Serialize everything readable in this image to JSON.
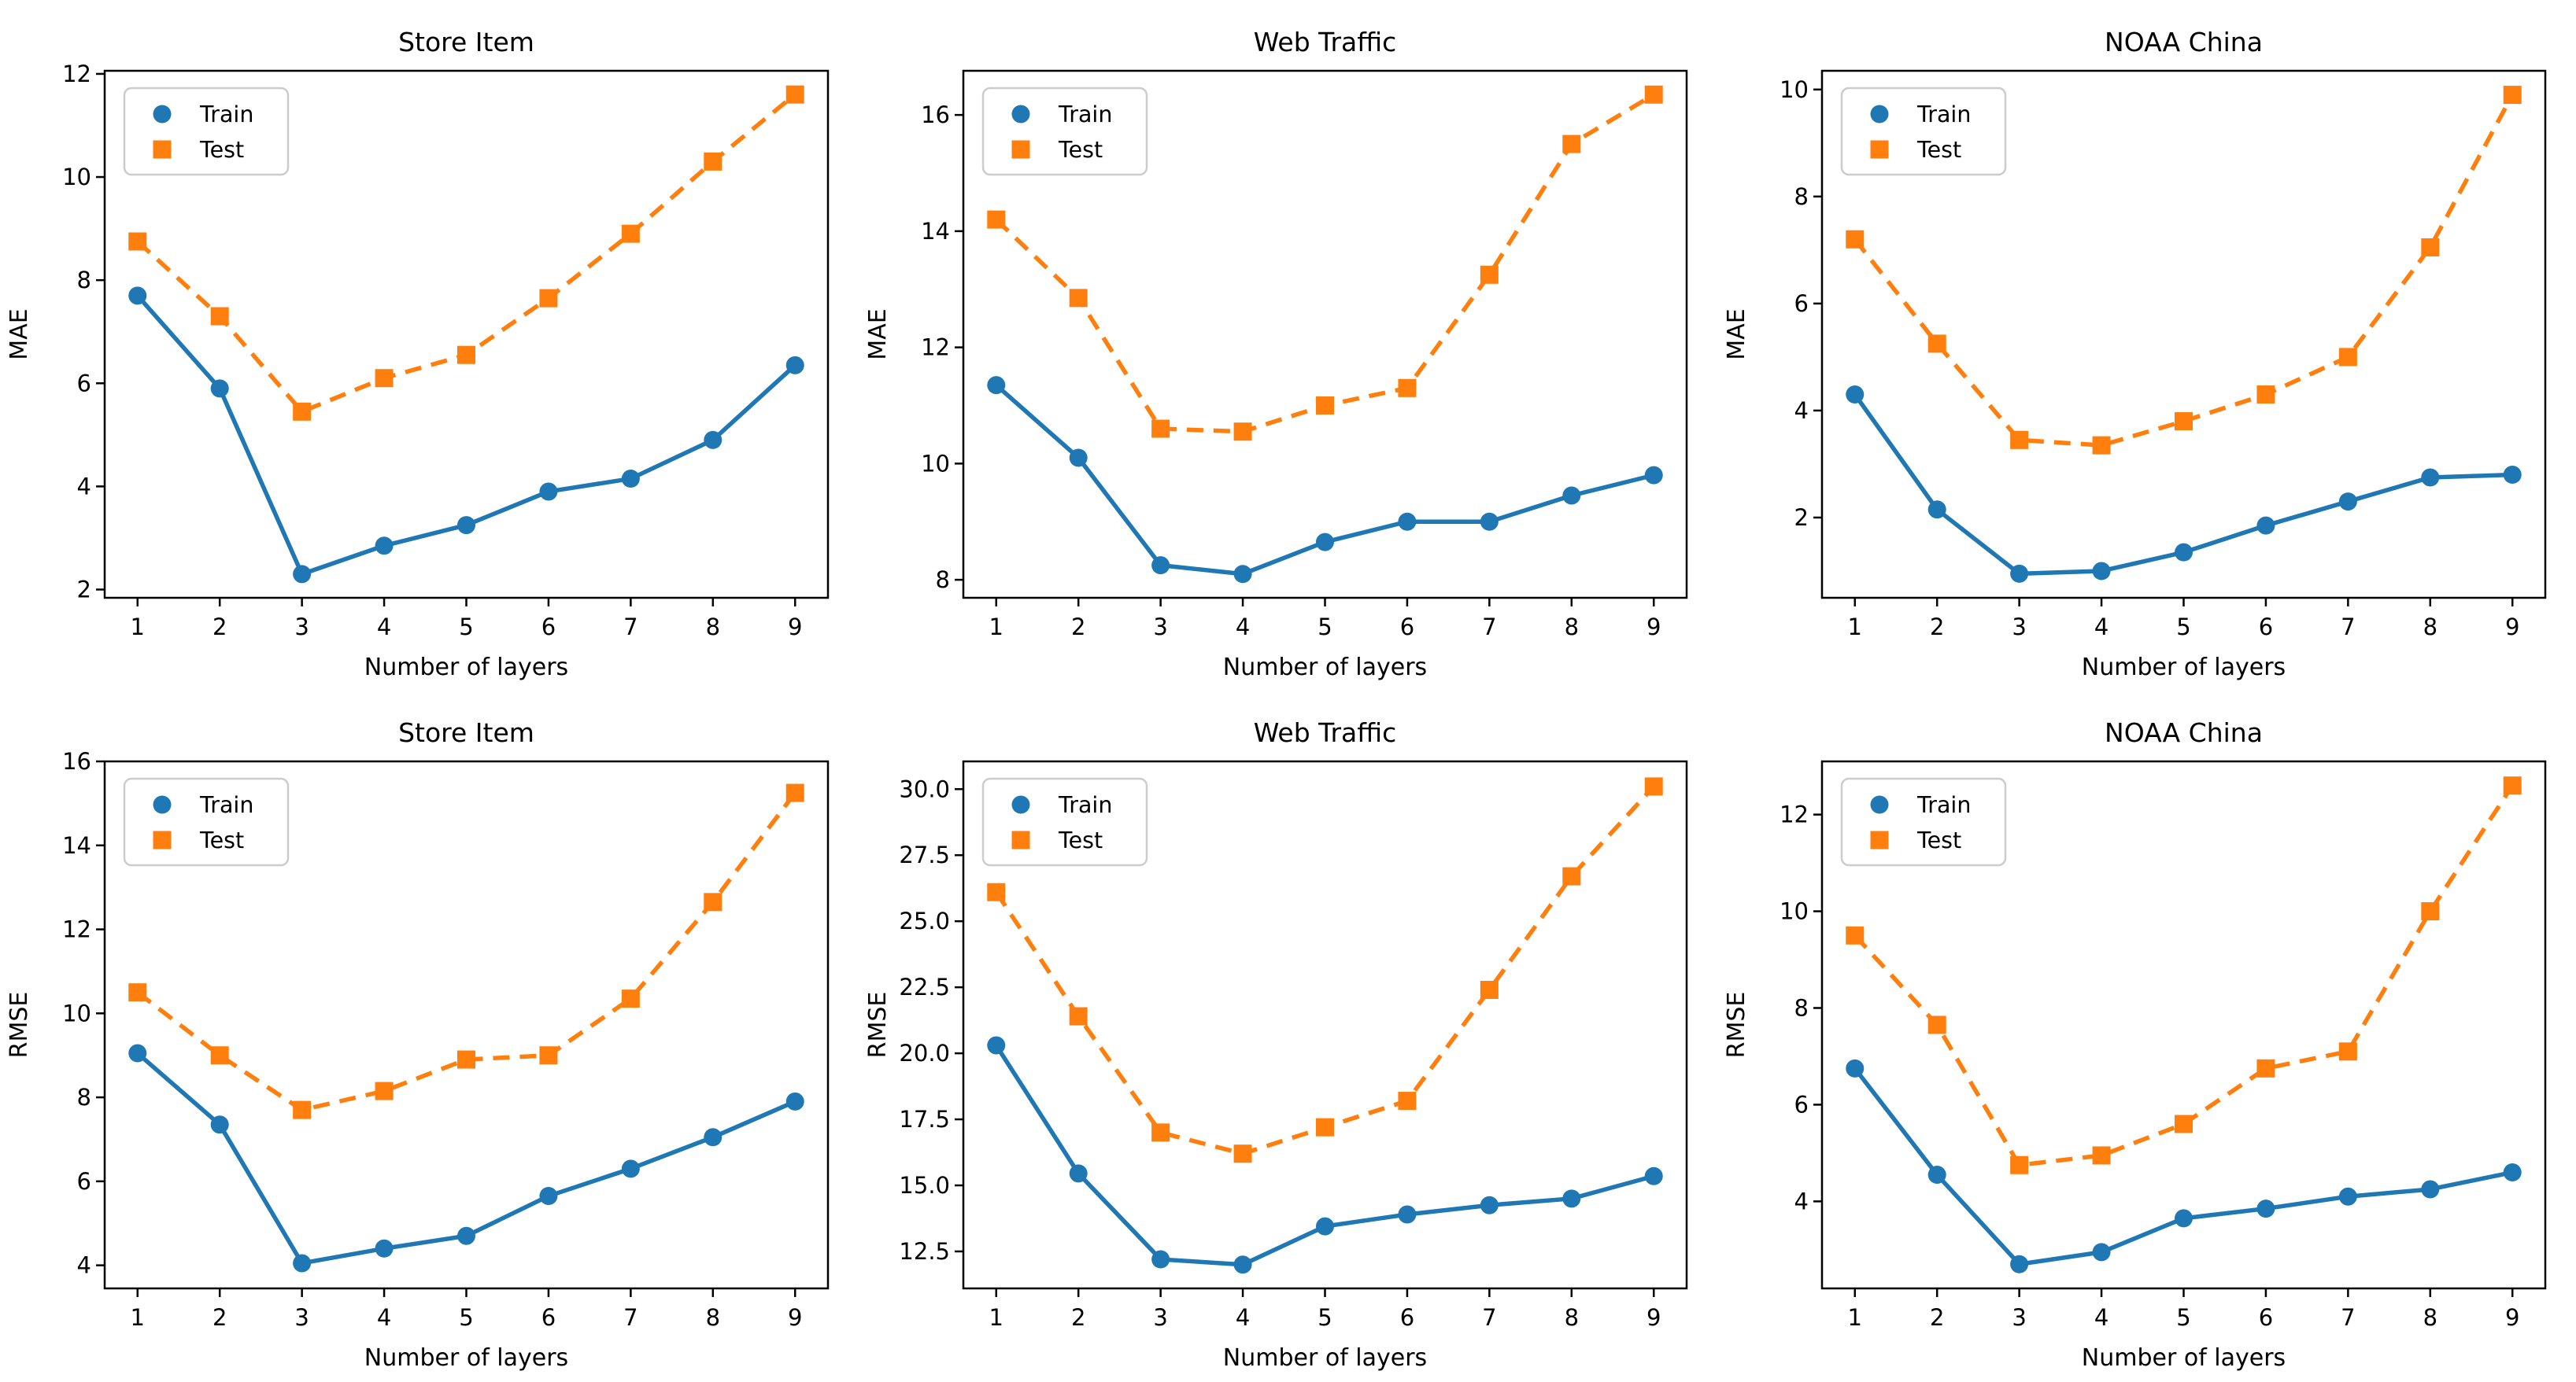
{
  "figure": {
    "background": "#ffffff",
    "axis_color": "#000000",
    "legend_border_color": "#cccccc",
    "train_color": "#1f77b4",
    "test_color": "#ff7f0e",
    "legend_items": [
      "Train",
      "Test"
    ],
    "x_axis_label": "Number of layers"
  },
  "chart_data": [
    {
      "type": "line",
      "title": "Store Item",
      "xlabel": "Number of layers",
      "ylabel": "MAE",
      "x": [
        1,
        2,
        3,
        4,
        5,
        6,
        7,
        8,
        9
      ],
      "xtick_labels": [
        "1",
        "2",
        "3",
        "4",
        "5",
        "6",
        "7",
        "8",
        "9"
      ],
      "xlim": [
        0.6,
        9.4
      ],
      "ylim": [
        1.84,
        12.06
      ],
      "yticks": [
        2,
        4,
        6,
        8,
        10,
        12
      ],
      "ytick_labels": [
        "2",
        "4",
        "6",
        "8",
        "10",
        "12"
      ],
      "grid": false,
      "legend_position": "upper left",
      "series": [
        {
          "name": "Train",
          "color": "#1f77b4",
          "marker": "circle",
          "linestyle": "solid",
          "values": [
            7.7,
            5.9,
            2.3,
            2.85,
            3.25,
            3.9,
            4.15,
            4.9,
            6.35
          ]
        },
        {
          "name": "Test",
          "color": "#ff7f0e",
          "marker": "square",
          "linestyle": "dashed",
          "values": [
            8.75,
            7.3,
            5.45,
            6.1,
            6.55,
            7.65,
            8.9,
            10.3,
            11.6
          ]
        }
      ]
    },
    {
      "type": "line",
      "title": "Web Traffic",
      "xlabel": "Number of layers",
      "ylabel": "MAE",
      "x": [
        1,
        2,
        3,
        4,
        5,
        6,
        7,
        8,
        9
      ],
      "xtick_labels": [
        "1",
        "2",
        "3",
        "4",
        "5",
        "6",
        "7",
        "8",
        "9"
      ],
      "xlim": [
        0.6,
        9.4
      ],
      "ylim": [
        7.69,
        16.76
      ],
      "yticks": [
        8,
        10,
        12,
        14,
        16
      ],
      "ytick_labels": [
        "8",
        "10",
        "12",
        "14",
        "16"
      ],
      "grid": false,
      "legend_position": "upper left",
      "series": [
        {
          "name": "Train",
          "color": "#1f77b4",
          "marker": "circle",
          "linestyle": "solid",
          "values": [
            11.35,
            10.1,
            8.25,
            8.1,
            8.65,
            9.0,
            9.0,
            9.45,
            9.8
          ]
        },
        {
          "name": "Test",
          "color": "#ff7f0e",
          "marker": "square",
          "linestyle": "dashed",
          "values": [
            14.2,
            12.85,
            10.6,
            10.55,
            11.0,
            11.3,
            13.25,
            15.5,
            16.35
          ]
        }
      ]
    },
    {
      "type": "line",
      "title": "NOAA China",
      "xlabel": "Number of layers",
      "ylabel": "MAE",
      "x": [
        1,
        2,
        3,
        4,
        5,
        6,
        7,
        8,
        9
      ],
      "xtick_labels": [
        "1",
        "2",
        "3",
        "4",
        "5",
        "6",
        "7",
        "8",
        "9"
      ],
      "xlim": [
        0.6,
        9.4
      ],
      "ylim": [
        0.5,
        10.35
      ],
      "yticks": [
        2,
        4,
        6,
        8,
        10
      ],
      "ytick_labels": [
        "2",
        "4",
        "6",
        "8",
        "10"
      ],
      "grid": false,
      "legend_position": "upper left",
      "series": [
        {
          "name": "Train",
          "color": "#1f77b4",
          "marker": "circle",
          "linestyle": "solid",
          "values": [
            4.3,
            2.15,
            0.95,
            1.0,
            1.35,
            1.85,
            2.3,
            2.75,
            2.8
          ]
        },
        {
          "name": "Test",
          "color": "#ff7f0e",
          "marker": "square",
          "linestyle": "dashed",
          "values": [
            7.2,
            5.25,
            3.45,
            3.35,
            3.8,
            4.3,
            5.0,
            7.05,
            9.9
          ]
        }
      ]
    },
    {
      "type": "line",
      "title": "Store Item",
      "xlabel": "Number of layers",
      "ylabel": "RMSE",
      "x": [
        1,
        2,
        3,
        4,
        5,
        6,
        7,
        8,
        9
      ],
      "xtick_labels": [
        "1",
        "2",
        "3",
        "4",
        "5",
        "6",
        "7",
        "8",
        "9"
      ],
      "xlim": [
        0.6,
        9.4
      ],
      "ylim": [
        3.45,
        16.0
      ],
      "yticks": [
        4,
        6,
        8,
        10,
        12,
        14,
        16
      ],
      "ytick_labels": [
        "4",
        "6",
        "8",
        "10",
        "12",
        "14",
        "16"
      ],
      "grid": false,
      "legend_position": "upper left",
      "series": [
        {
          "name": "Train",
          "color": "#1f77b4",
          "marker": "circle",
          "linestyle": "solid",
          "values": [
            9.05,
            7.35,
            4.05,
            4.4,
            4.7,
            5.65,
            6.3,
            7.05,
            7.9
          ]
        },
        {
          "name": "Test",
          "color": "#ff7f0e",
          "marker": "square",
          "linestyle": "dashed",
          "values": [
            10.5,
            9.0,
            7.7,
            8.15,
            8.9,
            9.0,
            10.35,
            12.65,
            15.25
          ]
        }
      ]
    },
    {
      "type": "line",
      "title": "Web Traffic",
      "xlabel": "Number of layers",
      "ylabel": "RMSE",
      "x": [
        1,
        2,
        3,
        4,
        5,
        6,
        7,
        8,
        9
      ],
      "xtick_labels": [
        "1",
        "2",
        "3",
        "4",
        "5",
        "6",
        "7",
        "8",
        "9"
      ],
      "xlim": [
        0.6,
        9.4
      ],
      "ylim": [
        11.1,
        31.05
      ],
      "yticks": [
        12.5,
        15.0,
        17.5,
        20.0,
        22.5,
        25.0,
        27.5,
        30.0
      ],
      "ytick_labels": [
        "12.5",
        "15.0",
        "17.5",
        "20.0",
        "22.5",
        "25.0",
        "27.5",
        "30.0"
      ],
      "grid": false,
      "legend_position": "upper left",
      "series": [
        {
          "name": "Train",
          "color": "#1f77b4",
          "marker": "circle",
          "linestyle": "solid",
          "values": [
            20.3,
            15.45,
            12.2,
            12.0,
            13.45,
            13.9,
            14.25,
            14.5,
            15.35
          ]
        },
        {
          "name": "Test",
          "color": "#ff7f0e",
          "marker": "square",
          "linestyle": "dashed",
          "values": [
            26.1,
            21.4,
            17.0,
            16.2,
            17.2,
            18.2,
            22.4,
            26.7,
            30.1
          ]
        }
      ]
    },
    {
      "type": "line",
      "title": "NOAA China",
      "xlabel": "Number of layers",
      "ylabel": "RMSE",
      "x": [
        1,
        2,
        3,
        4,
        5,
        6,
        7,
        8,
        9
      ],
      "xtick_labels": [
        "1",
        "2",
        "3",
        "4",
        "5",
        "6",
        "7",
        "8",
        "9"
      ],
      "xlim": [
        0.6,
        9.4
      ],
      "ylim": [
        2.2,
        13.1
      ],
      "yticks": [
        4,
        6,
        8,
        10,
        12
      ],
      "ytick_labels": [
        "4",
        "6",
        "8",
        "10",
        "12"
      ],
      "grid": false,
      "legend_position": "upper left",
      "series": [
        {
          "name": "Train",
          "color": "#1f77b4",
          "marker": "circle",
          "linestyle": "solid",
          "values": [
            6.75,
            4.55,
            2.7,
            2.95,
            3.65,
            3.85,
            4.1,
            4.25,
            4.6
          ]
        },
        {
          "name": "Test",
          "color": "#ff7f0e",
          "marker": "square",
          "linestyle": "dashed",
          "values": [
            9.5,
            7.65,
            4.75,
            4.95,
            5.6,
            6.75,
            7.1,
            10.0,
            12.6
          ]
        }
      ]
    }
  ]
}
